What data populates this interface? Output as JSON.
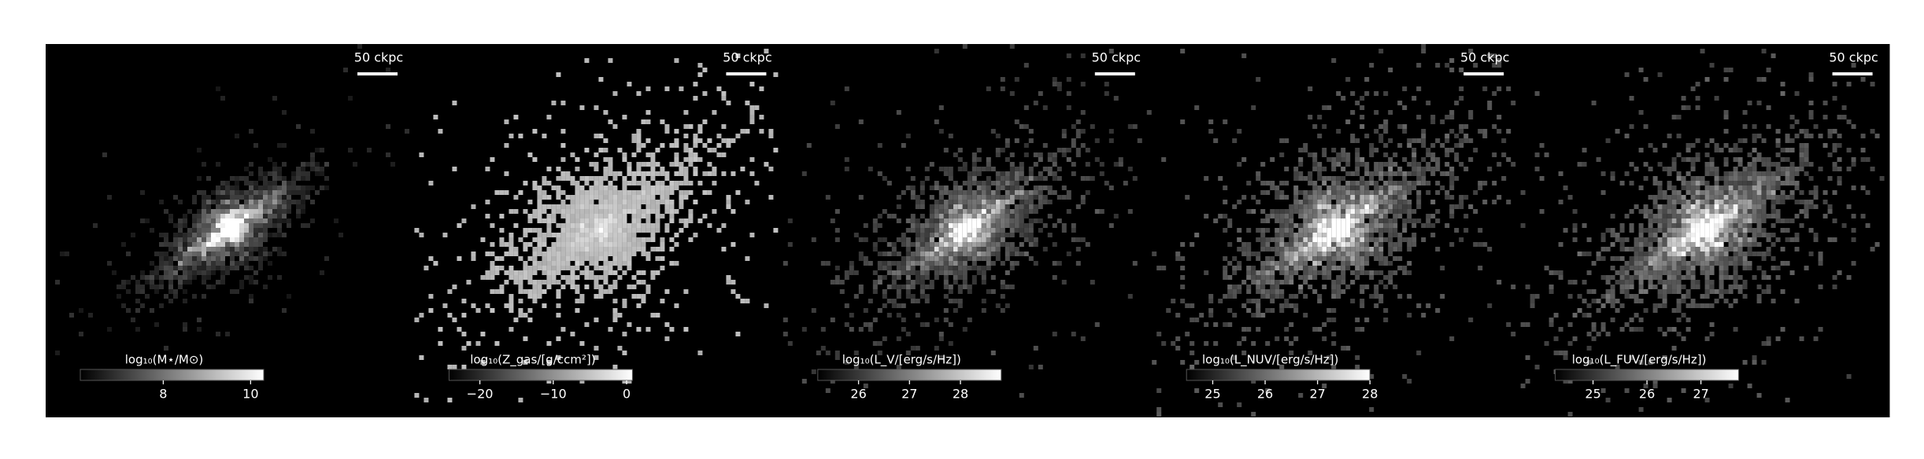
{
  "chart_data": [
    {
      "type": "image",
      "scale_bar_label": "50 ckpc",
      "colorbar": {
        "label": "log₁₀(M⋆/M⊙)",
        "clim": [
          6.1,
          10.3
        ],
        "ticks": [
          8,
          10
        ]
      }
    },
    {
      "type": "image",
      "scale_bar_label": "50 ckpc",
      "colorbar": {
        "label": "log₁₀(Z_gas/[g/ccm²])",
        "clim": [
          -24.2,
          0.8
        ],
        "ticks": [
          {
            "value": -20,
            "label": "−20"
          },
          {
            "value": -10,
            "label": "−10"
          },
          0
        ]
      }
    },
    {
      "type": "image",
      "scale_bar_label": "50 ckpc",
      "colorbar": {
        "label": "log₁₀(L_V/[erg/s/Hz])",
        "clim": [
          25.2,
          28.8
        ],
        "ticks": [
          26,
          27,
          28
        ]
      }
    },
    {
      "type": "image",
      "scale_bar_label": "50 ckpc",
      "colorbar": {
        "label": "log₁₀(L_NUV/[erg/s/Hz])",
        "clim": [
          24.5,
          28.0
        ],
        "ticks": [
          25,
          26,
          27,
          28
        ]
      }
    },
    {
      "type": "image",
      "scale_bar_label": "50 ckpc",
      "colorbar": {
        "label": "log₁₀(L_FUV/[erg/s/Hz])",
        "clim": [
          24.3,
          27.7
        ],
        "ticks": [
          25,
          26,
          27
        ]
      }
    }
  ]
}
